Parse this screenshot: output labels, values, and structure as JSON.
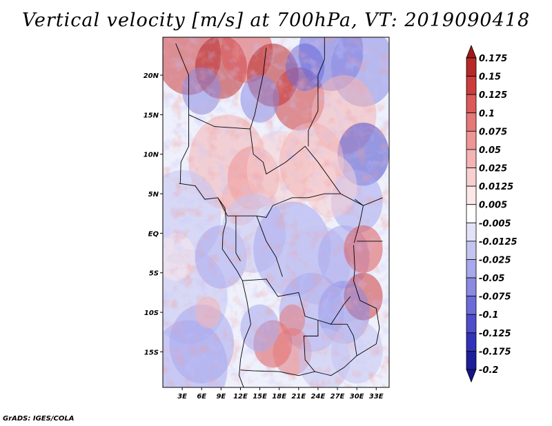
{
  "title": "Vertical velocity [m/s] at 700hPa, VT: 2019090418",
  "credit": "GrADS: IGES/COLA",
  "map": {
    "lat_labels": [
      "20N",
      "15N",
      "10N",
      "5N",
      "EQ",
      "5S",
      "10S",
      "15S"
    ],
    "lon_labels": [
      "3E",
      "6E",
      "9E",
      "12E",
      "15E",
      "18E",
      "21E",
      "24E",
      "27E",
      "30E",
      "33E"
    ],
    "lat_range": [
      -19.5,
      24.8
    ],
    "lon_range": [
      0,
      35
    ]
  },
  "colorbar": {
    "labels": [
      "0.175",
      "0.15",
      "0.125",
      "0.1",
      "0.075",
      "0.05",
      "0.025",
      "0.0125",
      "0.005",
      "-0.005",
      "-0.0125",
      "-0.025",
      "-0.05",
      "-0.075",
      "-0.1",
      "-0.125",
      "-0.175",
      "-0.2"
    ],
    "colors": [
      "#a01818",
      "#b82828",
      "#cc3c3c",
      "#dc5a5a",
      "#e67878",
      "#ee9696",
      "#f4b4b4",
      "#f8d0d0",
      "#fce8e8",
      "#ffffff",
      "#e2e2f8",
      "#c4c4f0",
      "#a8a8ec",
      "#8a8ae2",
      "#6c6cd8",
      "#4e4ecc",
      "#3232b8",
      "#1e1e9a",
      "#14148a"
    ]
  }
}
